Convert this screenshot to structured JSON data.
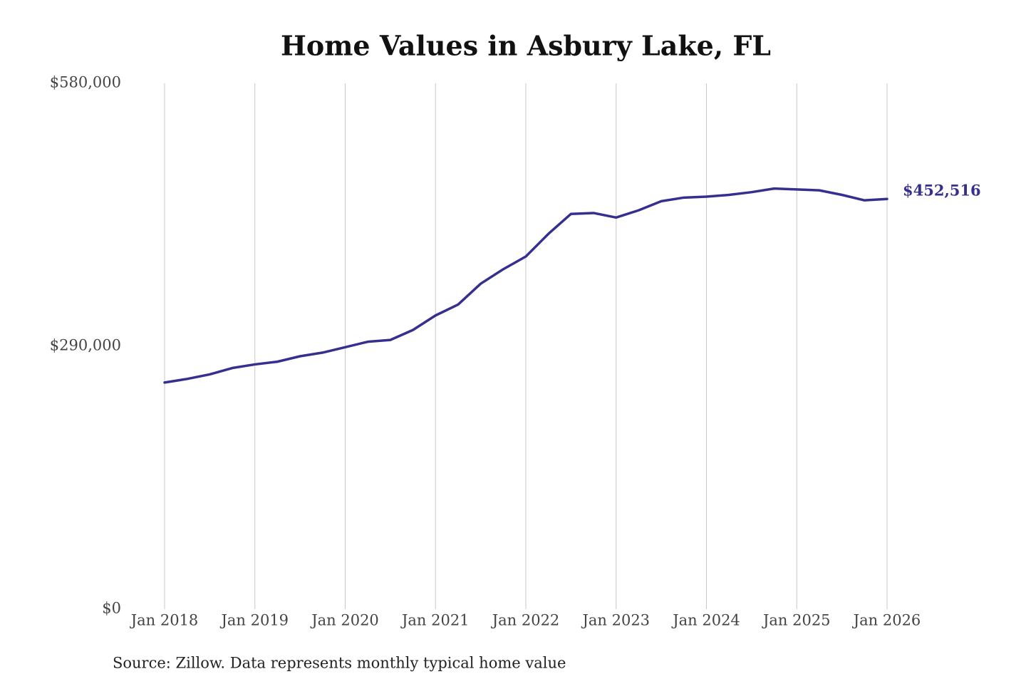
{
  "chart_data": {
    "type": "line",
    "title": "Home Values in Asbury Lake, FL",
    "source": "Source: Zillow. Data represents monthly typical home value",
    "categories": [
      "Jan 2018",
      null,
      null,
      null,
      "Jan 2019",
      null,
      null,
      null,
      "Jan 2020",
      null,
      null,
      null,
      "Jan 2021",
      null,
      null,
      null,
      "Jan 2022",
      null,
      null,
      null,
      "Jan 2023",
      null,
      null,
      null,
      "Jan 2024",
      null,
      null,
      null,
      "Jan 2025",
      null,
      null,
      null,
      "Jan 2026"
    ],
    "series": [
      {
        "name": "Typical home value",
        "color": "#35308f",
        "values": [
          250000,
          254000,
          259000,
          266000,
          270000,
          273000,
          279000,
          283000,
          289000,
          295000,
          297000,
          308000,
          324000,
          336000,
          359000,
          375000,
          389000,
          414000,
          436000,
          437000,
          432000,
          440000,
          450000,
          454000,
          455000,
          457000,
          460000,
          464000,
          463000,
          462000,
          457000,
          451000,
          452516
        ],
        "value_labels": [
          null,
          null,
          null,
          null,
          null,
          null,
          null,
          null,
          null,
          null,
          null,
          null,
          null,
          null,
          null,
          null,
          null,
          null,
          null,
          null,
          null,
          null,
          null,
          null,
          null,
          null,
          null,
          null,
          null,
          null,
          null,
          null,
          "$452,516"
        ]
      }
    ],
    "ylim": [
      0,
      580000
    ],
    "yticks": [
      {
        "value": 0,
        "label": "$0"
      },
      {
        "value": 290000,
        "label": "$290,000"
      },
      {
        "value": 580000,
        "label": "$580,000"
      }
    ],
    "grid": true
  }
}
